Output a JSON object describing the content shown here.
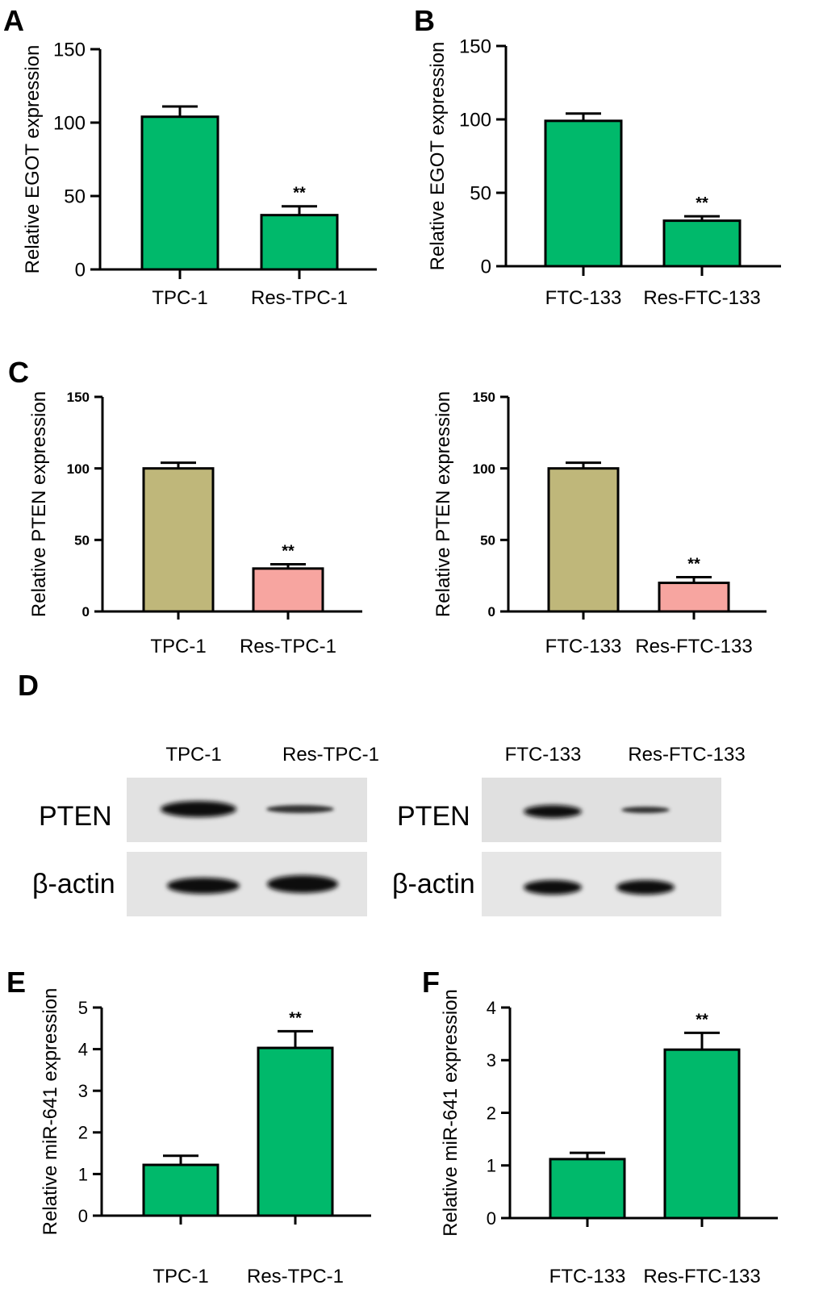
{
  "panels": {
    "A": "A",
    "B": "B",
    "C": "C",
    "D": "D",
    "E": "E",
    "F": "F"
  },
  "chart_data": [
    {
      "id": "A",
      "type": "bar",
      "categories": [
        "TPC-1",
        "Res-TPC-1"
      ],
      "values": [
        104,
        37
      ],
      "errors": [
        7,
        6
      ],
      "colors": [
        "#00b96b",
        "#00b96b"
      ],
      "ylabel": "Relative EGOT expression",
      "ylim": [
        0,
        150
      ],
      "yticks": [
        0,
        50,
        100,
        150
      ],
      "annotations": [
        "",
        "**"
      ]
    },
    {
      "id": "B",
      "type": "bar",
      "categories": [
        "FTC-133",
        "Res-FTC-133"
      ],
      "values": [
        99,
        31
      ],
      "errors": [
        5,
        3
      ],
      "colors": [
        "#00b96b",
        "#00b96b"
      ],
      "ylabel": "Relative EGOT expression",
      "ylim": [
        0,
        150
      ],
      "yticks": [
        0,
        50,
        100,
        150
      ],
      "annotations": [
        "",
        "**"
      ]
    },
    {
      "id": "C1",
      "type": "bar",
      "categories": [
        "TPC-1",
        "Res-TPC-1"
      ],
      "values": [
        100,
        30
      ],
      "errors": [
        4,
        3
      ],
      "colors": [
        "#bfb77a",
        "#f7a5a0"
      ],
      "ylabel": "Relative PTEN expression",
      "ylim": [
        0,
        150
      ],
      "yticks": [
        0,
        50,
        100,
        150
      ],
      "annotations": [
        "",
        "**"
      ]
    },
    {
      "id": "C2",
      "type": "bar",
      "categories": [
        "FTC-133",
        "Res-FTC-133"
      ],
      "values": [
        100,
        20
      ],
      "errors": [
        4,
        4
      ],
      "colors": [
        "#bfb77a",
        "#f7a5a0"
      ],
      "ylabel": "Relative PTEN expression",
      "ylim": [
        0,
        150
      ],
      "yticks": [
        0,
        50,
        100,
        150
      ],
      "annotations": [
        "",
        "**"
      ]
    },
    {
      "id": "E",
      "type": "bar",
      "categories": [
        "TPC-1",
        "Res-TPC-1"
      ],
      "values": [
        1.22,
        4.03
      ],
      "errors": [
        0.22,
        0.4
      ],
      "colors": [
        "#00b96b",
        "#00b96b"
      ],
      "ylabel": "Relative miR-641 expression",
      "ylim": [
        0,
        5
      ],
      "yticks": [
        0,
        1,
        2,
        3,
        4,
        5
      ],
      "annotations": [
        "",
        "**"
      ]
    },
    {
      "id": "F",
      "type": "bar",
      "categories": [
        "FTC-133",
        "Res-FTC-133"
      ],
      "values": [
        1.12,
        3.2
      ],
      "errors": [
        0.12,
        0.32
      ],
      "colors": [
        "#00b96b",
        "#00b96b"
      ],
      "ylabel": "Relative miR-641 expression",
      "ylim": [
        0,
        4
      ],
      "yticks": [
        0,
        1,
        2,
        3,
        4
      ],
      "annotations": [
        "",
        "**"
      ]
    }
  ],
  "blots": {
    "left": {
      "lanes": [
        "TPC-1",
        "Res-TPC-1"
      ],
      "rows": [
        "PTEN",
        "β-actin"
      ]
    },
    "right": {
      "lanes": [
        "FTC-133",
        "Res-FTC-133"
      ],
      "rows": [
        "PTEN",
        "β-actin"
      ]
    }
  }
}
